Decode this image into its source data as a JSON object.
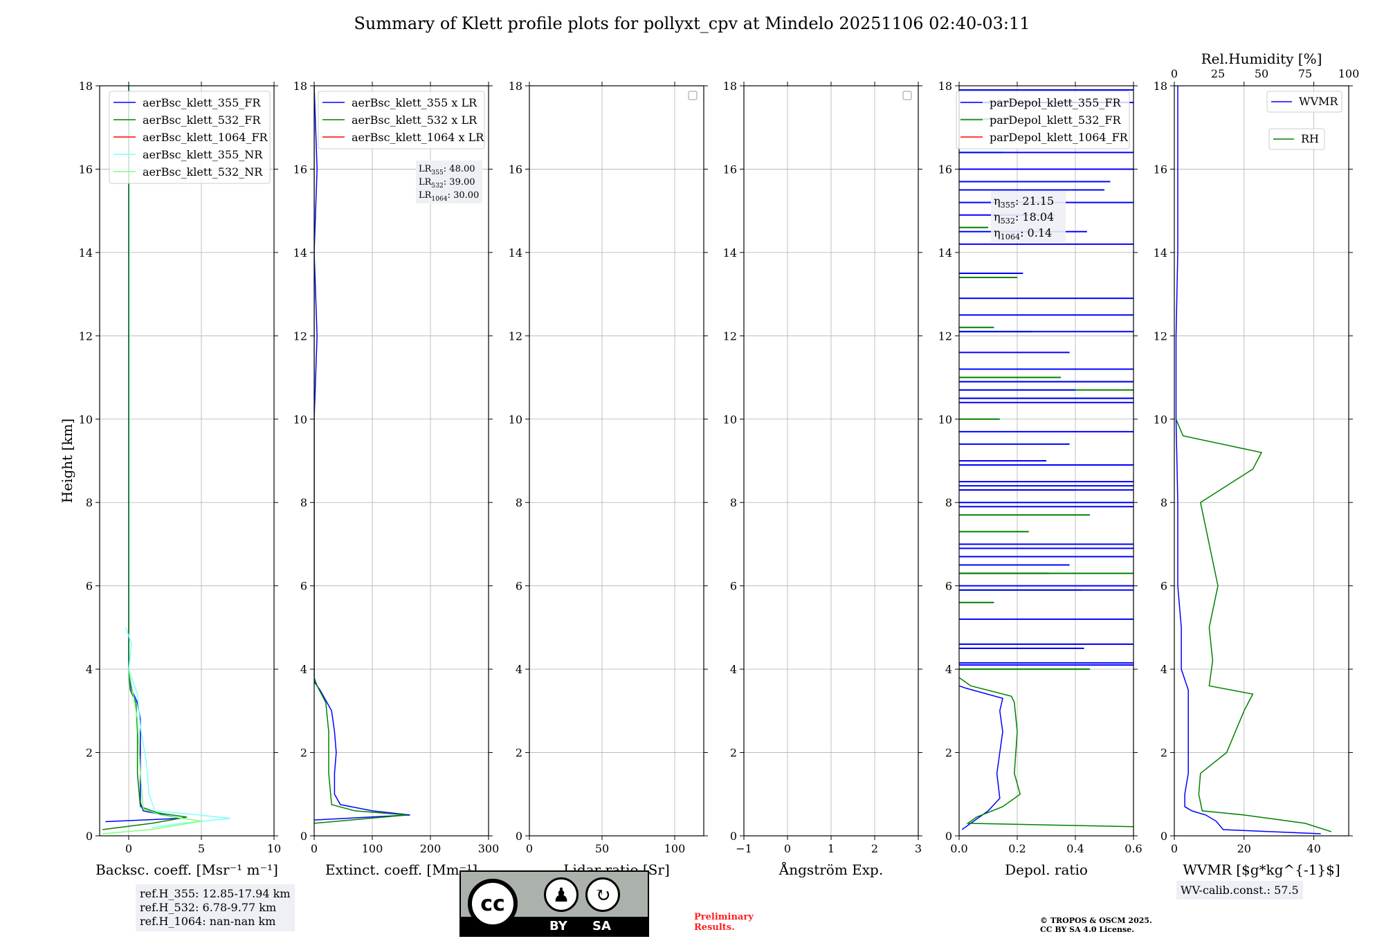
{
  "title": "Summary of Klett profile plots for pollyxt_cpv at Mindelo 20251106 02:40-03:11",
  "chart_data": [
    {
      "type": "line",
      "name": "backscatter",
      "xlabel": "Backsc. coeff. [Msr⁻¹ m⁻¹]",
      "ylabel": "Height [km]",
      "xlim": [
        -2,
        10
      ],
      "ylim": [
        0,
        18
      ],
      "xticks": [
        "0",
        "5",
        "10"
      ],
      "yticks": [
        "0",
        "2",
        "4",
        "6",
        "8",
        "10",
        "12",
        "14",
        "16",
        "18"
      ],
      "legend": "top-right",
      "series": [
        {
          "name": "aerBsc_klett_355_FR",
          "color": "#0000ff",
          "points": [
            [
              -1.6,
              0.34
            ],
            [
              3.6,
              0.42
            ],
            [
              2.4,
              0.5
            ],
            [
              1.0,
              0.6
            ],
            [
              0.8,
              0.8
            ],
            [
              0.8,
              1.5
            ],
            [
              0.8,
              2.3
            ],
            [
              0.8,
              2.8
            ],
            [
              0.6,
              3.2
            ],
            [
              0.2,
              3.5
            ],
            [
              0.0,
              4.0
            ],
            [
              0.0,
              6.0
            ],
            [
              0.0,
              10.0
            ],
            [
              0.0,
              14.0
            ],
            [
              0.0,
              18.0
            ]
          ]
        },
        {
          "name": "aerBsc_klett_532_FR",
          "color": "#008000",
          "points": [
            [
              -1.8,
              0.15
            ],
            [
              1.6,
              0.3
            ],
            [
              4.0,
              0.45
            ],
            [
              2.0,
              0.55
            ],
            [
              0.8,
              0.7
            ],
            [
              0.6,
              1.5
            ],
            [
              0.6,
              2.5
            ],
            [
              0.5,
              3.2
            ],
            [
              0.1,
              3.5
            ],
            [
              0.0,
              4.0
            ],
            [
              0.0,
              8.0
            ],
            [
              0.0,
              12.0
            ],
            [
              0.0,
              18.0
            ]
          ]
        },
        {
          "name": "aerBsc_klett_1064_FR",
          "color": "#ff0000",
          "points": []
        },
        {
          "name": "aerBsc_klett_355_NR",
          "color": "#7fffff",
          "points": [
            [
              1.6,
              0.2
            ],
            [
              3.6,
              0.3
            ],
            [
              7.0,
              0.42
            ],
            [
              4.8,
              0.5
            ],
            [
              1.8,
              0.6
            ],
            [
              1.4,
              1.0
            ],
            [
              1.2,
              1.8
            ],
            [
              0.8,
              2.6
            ],
            [
              0.6,
              3.4
            ],
            [
              0.0,
              4.0
            ],
            [
              0.2,
              4.6
            ],
            [
              -0.2,
              5.0
            ]
          ]
        },
        {
          "name": "aerBsc_klett_532_NR",
          "color": "#7fff7f",
          "points": [
            [
              -1.8,
              0.05
            ],
            [
              1.5,
              0.15
            ],
            [
              5.0,
              0.35
            ],
            [
              2.2,
              0.5
            ],
            [
              1.0,
              0.65
            ],
            [
              0.8,
              1.5
            ],
            [
              0.6,
              2.8
            ],
            [
              0.3,
              3.4
            ],
            [
              0.0,
              4.0
            ]
          ]
        }
      ],
      "annotation": {
        "lines": [
          "ref.H_355: 12.85-17.94 km",
          "ref.H_532: 6.78-9.77 km",
          "ref.H_1064: nan-nan km"
        ]
      }
    },
    {
      "type": "line",
      "name": "extinction",
      "xlabel": "Extinct. coeff. [Mm⁻¹]",
      "xlim": [
        0,
        300
      ],
      "ylim": [
        0,
        18
      ],
      "xticks": [
        "0",
        "100",
        "200",
        "300"
      ],
      "yticks": [
        "0",
        "2",
        "4",
        "6",
        "8",
        "10",
        "12",
        "14",
        "16",
        "18"
      ],
      "legend": "top-right",
      "series": [
        {
          "name": "aerBsc_klett_355 x LR",
          "color": "#0000ff",
          "points": [
            [
              0,
              0.38
            ],
            [
              165,
              0.5
            ],
            [
              100,
              0.6
            ],
            [
              45,
              0.75
            ],
            [
              35,
              1.0
            ],
            [
              35,
              1.5
            ],
            [
              38,
              2.0
            ],
            [
              35,
              2.5
            ],
            [
              30,
              3.0
            ],
            [
              10,
              3.5
            ],
            [
              0,
              3.7
            ],
            [
              0,
              10.0
            ],
            [
              5,
              12.0
            ],
            [
              0,
              14.0
            ],
            [
              5,
              16.0
            ],
            [
              0,
              18.0
            ]
          ]
        },
        {
          "name": "aerBsc_klett_532 x LR",
          "color": "#008000",
          "points": [
            [
              0,
              0.3
            ],
            [
              80,
              0.4
            ],
            [
              160,
              0.5
            ],
            [
              70,
              0.6
            ],
            [
              30,
              0.75
            ],
            [
              25,
              1.5
            ],
            [
              25,
              2.5
            ],
            [
              20,
              3.2
            ],
            [
              5,
              3.6
            ],
            [
              0,
              3.8
            ],
            [
              0,
              18.0
            ]
          ]
        },
        {
          "name": "aerBsc_klett_1064 x LR",
          "color": "#ff0000",
          "points": []
        }
      ],
      "lr_box": [
        {
          "sym": "LR",
          "sub": "355",
          "value": ": 48.00"
        },
        {
          "sym": "LR",
          "sub": "532",
          "value": ": 39.00"
        },
        {
          "sym": "LR",
          "sub": "1064",
          "value": ": 30.00"
        }
      ]
    },
    {
      "type": "line",
      "name": "lidar-ratio",
      "xlabel": "Lidar ratio [Sr]",
      "xlim": [
        0,
        120
      ],
      "ylim": [
        0,
        18
      ],
      "xticks": [
        "0",
        "50",
        "100"
      ],
      "yticks": [
        "0",
        "2",
        "4",
        "6",
        "8",
        "10",
        "12",
        "14",
        "16",
        "18"
      ],
      "legend": "top-right (empty)",
      "series": []
    },
    {
      "type": "line",
      "name": "angstrom",
      "xlabel": "Ångström Exp.",
      "xlim": [
        -1,
        3
      ],
      "ylim": [
        0,
        18
      ],
      "xticks": [
        "−1",
        "0",
        "1",
        "2",
        "3"
      ],
      "yticks": [
        "0",
        "2",
        "4",
        "6",
        "8",
        "10",
        "12",
        "14",
        "16",
        "18"
      ],
      "legend": "top-right (empty)",
      "series": []
    },
    {
      "type": "line",
      "name": "depolarization",
      "xlabel": "Depol. ratio",
      "xlim": [
        0,
        0.6
      ],
      "ylim": [
        0,
        18
      ],
      "xticks": [
        "0.0",
        "0.2",
        "0.4",
        "0.6"
      ],
      "yticks": [
        "0",
        "2",
        "4",
        "6",
        "8",
        "10",
        "12",
        "14",
        "16",
        "18"
      ],
      "legend": "top-right",
      "series": [
        {
          "name": "parDepol_klett_355_FR",
          "color": "#0000ff",
          "points": [
            [
              0.01,
              0.15
            ],
            [
              0.04,
              0.3
            ],
            [
              0.1,
              0.6
            ],
            [
              0.14,
              0.9
            ],
            [
              0.13,
              1.5
            ],
            [
              0.14,
              2.0
            ],
            [
              0.15,
              2.5
            ],
            [
              0.14,
              3.0
            ],
            [
              0.15,
              3.3
            ],
            [
              0.02,
              3.55
            ],
            [
              0.0,
              3.6
            ]
          ]
        },
        {
          "name": "parDepol_klett_532_FR",
          "color": "#008000",
          "points": [
            [
              0.6,
              0.22
            ],
            [
              0.03,
              0.3
            ],
            [
              0.06,
              0.45
            ],
            [
              0.15,
              0.7
            ],
            [
              0.21,
              1.0
            ],
            [
              0.19,
              1.5
            ],
            [
              0.2,
              2.5
            ],
            [
              0.19,
              3.2
            ],
            [
              0.18,
              3.35
            ],
            [
              0.04,
              3.6
            ],
            [
              0.0,
              3.8
            ]
          ]
        },
        {
          "name": "parDepol_klett_1064_FR",
          "color": "#ff0000",
          "points": []
        }
      ],
      "spikes_355": [
        [
          4.1,
          0.6
        ],
        [
          4.15,
          0.6
        ],
        [
          4.5,
          0.43
        ],
        [
          4.6,
          0.6
        ],
        [
          5.2,
          0.6
        ],
        [
          5.9,
          0.6
        ],
        [
          6.0,
          0.6
        ],
        [
          6.5,
          0.38
        ],
        [
          6.7,
          0.6
        ],
        [
          6.9,
          0.6
        ],
        [
          7.0,
          0.6
        ],
        [
          7.9,
          0.6
        ],
        [
          8.0,
          0.6
        ],
        [
          8.3,
          0.6
        ],
        [
          8.4,
          0.6
        ],
        [
          8.5,
          0.6
        ],
        [
          8.9,
          0.6
        ],
        [
          9.0,
          0.3
        ],
        [
          9.4,
          0.38
        ],
        [
          9.7,
          0.6
        ],
        [
          10.4,
          0.6
        ],
        [
          10.5,
          0.6
        ],
        [
          10.7,
          0.4
        ],
        [
          10.9,
          0.6
        ],
        [
          11.2,
          0.6
        ],
        [
          11.6,
          0.38
        ],
        [
          12.1,
          0.6
        ],
        [
          12.5,
          0.6
        ],
        [
          12.9,
          0.6
        ],
        [
          13.5,
          0.22
        ],
        [
          14.2,
          0.6
        ],
        [
          14.5,
          0.44
        ],
        [
          14.9,
          0.33
        ],
        [
          15.2,
          0.6
        ],
        [
          15.5,
          0.5
        ],
        [
          15.7,
          0.52
        ],
        [
          16.0,
          0.6
        ],
        [
          16.4,
          0.6
        ],
        [
          17.6,
          0.6
        ],
        [
          17.9,
          0.6
        ]
      ],
      "spikes_532": [
        [
          4.0,
          0.45
        ],
        [
          5.6,
          0.12
        ],
        [
          5.9,
          0.42
        ],
        [
          6.3,
          0.6
        ],
        [
          6.3,
          0.31
        ],
        [
          7.3,
          0.24
        ],
        [
          7.7,
          0.45
        ],
        [
          8.3,
          0.4
        ],
        [
          10.0,
          0.14
        ],
        [
          10.5,
          0.6
        ],
        [
          10.7,
          0.6
        ],
        [
          10.9,
          0.6
        ],
        [
          11.0,
          0.35
        ],
        [
          12.1,
          0.25
        ],
        [
          12.2,
          0.12
        ],
        [
          13.4,
          0.2
        ],
        [
          14.6,
          0.1
        ],
        [
          16.4,
          0.15
        ],
        [
          17.2,
          0.18
        ]
      ],
      "eta_box": [
        {
          "sym": "η",
          "sub": "355",
          "value": ": 21.15"
        },
        {
          "sym": "η",
          "sub": "532",
          "value": ": 18.04"
        },
        {
          "sym": "η",
          "sub": "1064",
          "value": ": 0.14"
        }
      ]
    },
    {
      "type": "line",
      "name": "wvmr-rh",
      "xlabel": "WVMR [$g*kg^{-1}$]",
      "top_label": "Rel.Humidity [%]",
      "xlim": [
        0,
        50
      ],
      "xlim_top": [
        0,
        100
      ],
      "ylim": [
        0,
        18
      ],
      "xticks": [
        "0",
        "20",
        "40"
      ],
      "xticks_top": [
        "0",
        "25",
        "50",
        "75",
        "100"
      ],
      "yticks": [
        "0",
        "2",
        "4",
        "6",
        "8",
        "10",
        "12",
        "14",
        "16",
        "18"
      ],
      "legend": "top-right",
      "series": [
        {
          "name": "WVMR",
          "color": "#0000ff",
          "axis": "bottom",
          "points": [
            [
              42,
              0.05
            ],
            [
              14,
              0.15
            ],
            [
              12,
              0.35
            ],
            [
              9,
              0.5
            ],
            [
              5,
              0.6
            ],
            [
              3,
              0.7
            ],
            [
              3,
              1.0
            ],
            [
              4,
              1.5
            ],
            [
              4,
              2.5
            ],
            [
              4,
              3.5
            ],
            [
              2,
              4.0
            ],
            [
              2,
              5.0
            ],
            [
              1,
              6.0
            ],
            [
              1,
              8.0
            ],
            [
              0.5,
              10.0
            ],
            [
              0.5,
              12.0
            ],
            [
              1,
              14.0
            ],
            [
              1,
              16.0
            ],
            [
              1,
              18.0
            ]
          ]
        },
        {
          "name": "RH",
          "color": "#008000",
          "axis": "top",
          "points": [
            [
              90,
              0.1
            ],
            [
              75,
              0.3
            ],
            [
              40,
              0.5
            ],
            [
              16,
              0.6
            ],
            [
              14,
              1.0
            ],
            [
              15,
              1.5
            ],
            [
              30,
              2.0
            ],
            [
              40,
              3.0
            ],
            [
              45,
              3.4
            ],
            [
              20,
              3.6
            ],
            [
              22,
              4.2
            ],
            [
              20,
              5.0
            ],
            [
              25,
              6.0
            ],
            [
              20,
              7.0
            ],
            [
              15,
              8.0
            ],
            [
              45,
              8.8
            ],
            [
              50,
              9.2
            ],
            [
              5,
              9.6
            ],
            [
              1,
              10.0
            ]
          ]
        }
      ],
      "annotation": {
        "text": "WV-calib.const.: 57.5"
      }
    }
  ],
  "ref_heights": [
    "ref.H_355: 12.85-17.94 km",
    "ref.H_532: 6.78-9.77 km",
    "ref.H_1064: nan-nan km"
  ],
  "wv_calib": "WV-calib.const.: 57.5",
  "prelim": [
    "Preliminary",
    "Results."
  ],
  "copyright": [
    "© TROPOS & OSCM 2025.",
    "CC BY SA 4.0 License."
  ],
  "license": {
    "cc": "cc",
    "by": "BY",
    "sa": "SA"
  },
  "colors": {
    "blue": "#0000ff",
    "green": "#008000",
    "red": "#ff0000",
    "cyan": "#7fffff",
    "lightgreen": "#7fff7f",
    "grid": "#b0b0b0"
  }
}
